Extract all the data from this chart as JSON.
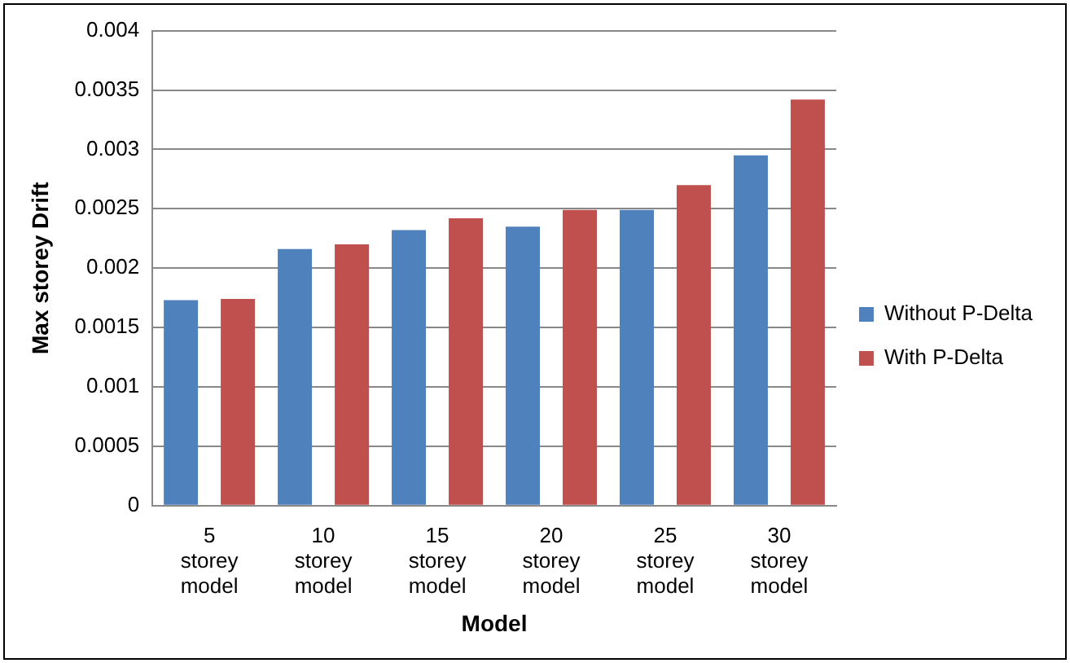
{
  "chart_data": {
    "type": "bar",
    "xlabel": "Model",
    "ylabel": "Max storey Drift",
    "categories": [
      "5 storey model",
      "10 storey model",
      "15 storey model",
      "20 storey model",
      "25 storey model",
      "30 storey model"
    ],
    "series": [
      {
        "name": "Without P-Delta",
        "color": "#4f81bd",
        "values": [
          0.00173,
          0.00216,
          0.00232,
          0.00235,
          0.00249,
          0.00295
        ]
      },
      {
        "name": "With P-Delta",
        "color": "#c0504d",
        "values": [
          0.00174,
          0.0022,
          0.00242,
          0.00249,
          0.0027,
          0.00342
        ]
      }
    ],
    "ylim": [
      0,
      0.004
    ],
    "yticks": [
      0,
      0.0005,
      0.001,
      0.0015,
      0.002,
      0.0025,
      0.003,
      0.0035,
      0.004
    ],
    "grid": "y",
    "legend": "right"
  }
}
